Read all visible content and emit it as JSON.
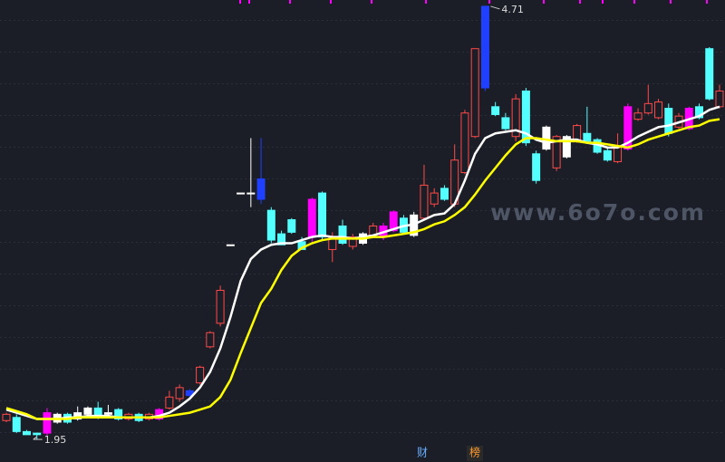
{
  "chart_data": {
    "type": "candlestick",
    "ylim": [
      1.806,
      4.75
    ],
    "up_color": "#ff4a4a",
    "down_color": "#54ffff",
    "background": "#1b1e26",
    "highlights": [
      {
        "index": 4,
        "color": "#ff00ff"
      },
      {
        "index": 5,
        "color": "#ffffff"
      },
      {
        "index": 7,
        "color": "#ffffff"
      },
      {
        "index": 8,
        "color": "#ffffff"
      },
      {
        "index": 10,
        "color": "#ffffff"
      },
      {
        "index": 15,
        "color": "#ff00ff"
      },
      {
        "index": 18,
        "color": "#2040ff"
      },
      {
        "index": 22,
        "color": "#ffffff"
      },
      {
        "index": 23,
        "color": "#ffffff"
      },
      {
        "index": 24,
        "color": "#ffffff"
      },
      {
        "index": 25,
        "color": "#2040ff"
      },
      {
        "index": 30,
        "color": "#ff00ff"
      },
      {
        "index": 35,
        "color": "#ffffff"
      },
      {
        "index": 37,
        "color": "#ff00ff"
      },
      {
        "index": 38,
        "color": "#ff00ff"
      },
      {
        "index": 40,
        "color": "#ffffff"
      },
      {
        "index": 47,
        "color": "#2040ff"
      },
      {
        "index": 53,
        "color": "#ffffff"
      },
      {
        "index": 55,
        "color": "#ffffff"
      },
      {
        "index": 61,
        "color": "#ff00ff"
      },
      {
        "index": 67,
        "color": "#ff00ff"
      }
    ],
    "ohlc": [
      [
        2.07,
        2.12,
        2.06,
        2.11
      ],
      [
        2.09,
        2.11,
        1.99,
        2.0
      ],
      [
        2.0,
        2.01,
        1.98,
        1.98
      ],
      [
        1.99,
        1.99,
        1.95,
        1.98
      ],
      [
        1.99,
        2.15,
        1.97,
        2.12
      ],
      [
        2.06,
        2.12,
        2.05,
        2.11
      ],
      [
        2.11,
        2.12,
        2.05,
        2.06
      ],
      [
        2.08,
        2.16,
        2.07,
        2.12
      ],
      [
        2.11,
        2.16,
        2.09,
        2.15
      ],
      [
        2.15,
        2.19,
        2.08,
        2.09
      ],
      [
        2.11,
        2.17,
        2.09,
        2.12
      ],
      [
        2.14,
        2.15,
        2.07,
        2.08
      ],
      [
        2.08,
        2.12,
        2.07,
        2.11
      ],
      [
        2.11,
        2.12,
        2.06,
        2.07
      ],
      [
        2.08,
        2.12,
        2.07,
        2.11
      ],
      [
        2.08,
        2.15,
        2.07,
        2.14
      ],
      [
        2.15,
        2.26,
        2.14,
        2.22
      ],
      [
        2.21,
        2.3,
        2.19,
        2.28
      ],
      [
        2.23,
        2.27,
        2.22,
        2.26
      ],
      [
        2.31,
        2.42,
        2.3,
        2.41
      ],
      [
        2.54,
        2.64,
        2.53,
        2.63
      ],
      [
        2.69,
        2.93,
        2.67,
        2.9
      ],
      [
        3.19,
        3.19,
        3.19,
        3.19
      ],
      [
        3.52,
        3.52,
        3.52,
        3.52
      ],
      [
        3.52,
        3.87,
        3.43,
        3.52
      ],
      [
        3.48,
        3.87,
        3.45,
        3.61
      ],
      [
        3.41,
        3.43,
        3.2,
        3.22
      ],
      [
        3.26,
        3.28,
        3.19,
        3.19
      ],
      [
        3.35,
        3.36,
        3.26,
        3.27
      ],
      [
        3.21,
        3.24,
        3.16,
        3.16
      ],
      [
        3.24,
        3.49,
        3.21,
        3.48
      ],
      [
        3.52,
        3.53,
        3.22,
        3.24
      ],
      [
        3.16,
        3.27,
        3.08,
        3.24
      ],
      [
        3.31,
        3.35,
        3.19,
        3.2
      ],
      [
        3.18,
        3.26,
        3.16,
        3.24
      ],
      [
        3.2,
        3.27,
        3.19,
        3.26
      ],
      [
        3.25,
        3.33,
        3.24,
        3.31
      ],
      [
        3.24,
        3.33,
        3.22,
        3.31
      ],
      [
        3.28,
        3.41,
        3.27,
        3.4
      ],
      [
        3.36,
        3.38,
        3.26,
        3.27
      ],
      [
        3.25,
        3.4,
        3.24,
        3.38
      ],
      [
        3.36,
        3.7,
        3.35,
        3.57
      ],
      [
        3.45,
        3.55,
        3.43,
        3.52
      ],
      [
        3.55,
        3.57,
        3.47,
        3.48
      ],
      [
        3.45,
        3.83,
        3.43,
        3.73
      ],
      [
        3.65,
        4.05,
        3.64,
        4.03
      ],
      [
        3.88,
        4.44,
        3.87,
        4.44
      ],
      [
        4.19,
        4.71,
        4.17,
        4.71
      ],
      [
        4.07,
        4.1,
        4.01,
        4.02
      ],
      [
        4.0,
        4.03,
        3.92,
        3.93
      ],
      [
        3.88,
        4.15,
        3.85,
        4.12
      ],
      [
        4.17,
        4.19,
        3.82,
        3.84
      ],
      [
        3.77,
        3.79,
        3.58,
        3.6
      ],
      [
        3.8,
        3.95,
        3.79,
        3.94
      ],
      [
        3.68,
        3.89,
        3.66,
        3.88
      ],
      [
        3.75,
        3.89,
        3.74,
        3.88
      ],
      [
        3.85,
        3.96,
        3.84,
        3.95
      ],
      [
        3.9,
        4.07,
        3.84,
        3.85
      ],
      [
        3.86,
        3.87,
        3.77,
        3.78
      ],
      [
        3.79,
        3.81,
        3.72,
        3.73
      ],
      [
        3.72,
        3.9,
        3.71,
        3.81
      ],
      [
        3.8,
        4.09,
        3.79,
        4.07
      ],
      [
        3.99,
        4.06,
        3.98,
        4.03
      ],
      [
        4.03,
        4.21,
        4.02,
        4.09
      ],
      [
        4.0,
        4.12,
        3.99,
        4.1
      ],
      [
        4.06,
        4.09,
        3.88,
        3.9
      ],
      [
        3.94,
        4.03,
        3.93,
        4.01
      ],
      [
        3.93,
        4.07,
        3.92,
        4.06
      ],
      [
        4.07,
        4.09,
        3.99,
        4.0
      ],
      [
        4.44,
        4.45,
        4.11,
        4.12
      ],
      [
        4.07,
        4.21,
        4.06,
        4.17
      ]
    ],
    "series": [
      {
        "color": "#ffffff",
        "values": [
          2.14,
          2.12,
          2.1,
          2.08,
          2.08,
          2.08,
          2.09,
          2.09,
          2.1,
          2.1,
          2.1,
          2.09,
          2.09,
          2.09,
          2.09,
          2.1,
          2.12,
          2.16,
          2.21,
          2.28,
          2.38,
          2.53,
          2.73,
          2.96,
          3.1,
          3.16,
          3.19,
          3.2,
          3.2,
          3.22,
          3.24,
          3.25,
          3.24,
          3.24,
          3.23,
          3.24,
          3.25,
          3.27,
          3.29,
          3.31,
          3.32,
          3.35,
          3.38,
          3.39,
          3.45,
          3.6,
          3.77,
          3.87,
          3.9,
          3.91,
          3.92,
          3.9,
          3.86,
          3.84,
          3.85,
          3.86,
          3.86,
          3.84,
          3.83,
          3.81,
          3.81,
          3.84,
          3.88,
          3.91,
          3.94,
          3.95,
          3.97,
          3.99,
          4.01,
          4.05,
          4.07
        ]
      },
      {
        "color": "#ffff00",
        "values": [
          2.15,
          2.13,
          2.11,
          2.08,
          2.08,
          2.08,
          2.08,
          2.09,
          2.09,
          2.09,
          2.09,
          2.09,
          2.09,
          2.09,
          2.09,
          2.09,
          2.1,
          2.11,
          2.12,
          2.14,
          2.16,
          2.22,
          2.33,
          2.5,
          2.66,
          2.82,
          2.91,
          3.03,
          3.12,
          3.17,
          3.2,
          3.22,
          3.23,
          3.23,
          3.23,
          3.23,
          3.24,
          3.24,
          3.25,
          3.26,
          3.27,
          3.29,
          3.32,
          3.34,
          3.38,
          3.43,
          3.51,
          3.6,
          3.68,
          3.76,
          3.83,
          3.87,
          3.87,
          3.86,
          3.85,
          3.85,
          3.85,
          3.84,
          3.84,
          3.83,
          3.82,
          3.81,
          3.83,
          3.86,
          3.88,
          3.9,
          3.92,
          3.94,
          3.95,
          3.98,
          3.99
        ]
      }
    ],
    "watermark": "www.6o7o.com",
    "footer_labels": [
      "财",
      "榜"
    ]
  }
}
